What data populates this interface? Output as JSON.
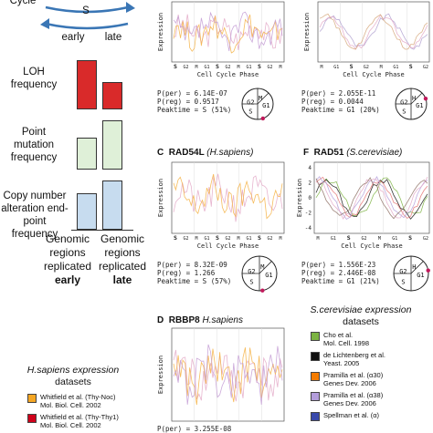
{
  "left": {
    "cycle_labels": {
      "top": "Cycle",
      "s": "S",
      "early": "early",
      "late": "late"
    },
    "metrics": [
      {
        "label": "LOH frequency",
        "early": 1.0,
        "late": 0.55,
        "early_color": "#d92a2a",
        "late_color": "#d92a2a"
      },
      {
        "label": "Point mutation frequency",
        "early": 0.65,
        "late": 1.0,
        "early_color": "#dff0d8",
        "late_color": "#dff0d8"
      },
      {
        "label": "Copy number alteration end-point frequency",
        "early": 0.75,
        "late": 1.0,
        "early_color": "#c7dcef",
        "late_color": "#c7dcef"
      }
    ],
    "x_early_1": "Genomic",
    "x_early_2": "regions",
    "x_early_3": "replicated",
    "x_early_4": "early",
    "x_late_1": "Genomic",
    "x_late_2": "regions",
    "x_late_3": "replicated",
    "x_late_4": "late"
  },
  "legend_hs": {
    "title_1": "H.sapiens expression",
    "title_2": "datasets",
    "items": [
      {
        "text_1": "Whitfield et al. (Thy-Noc)",
        "text_2": "Mol. Biol. Cell. 2002",
        "color": "#f5a623"
      },
      {
        "text_1": "Whitfield et al. (Thy-Thy1)",
        "text_2": "Mol. Biol. Cell. 2002",
        "color": "#d0021b"
      }
    ]
  },
  "legend_sc": {
    "title_1": "S.cerevisiae expression",
    "title_2": "datasets",
    "items": [
      {
        "text_1": "Cho et al.",
        "text_2": "Mol. Cell. 1998",
        "color": "#7cb342"
      },
      {
        "text_1": "de Lichtenberg et al.",
        "text_2": "Yeast. 2005",
        "color": "#111111"
      },
      {
        "text_1": "Pramilla et al. (α30)",
        "text_2": "Genes Dev. 2006",
        "color": "#f57c00"
      },
      {
        "text_1": "Pramilla et al. (α38)",
        "text_2": "Genes Dev. 2006",
        "color": "#b39ddb"
      },
      {
        "text_1": "Spellman et al. (α)",
        "text_2": "",
        "color": "#3949ab"
      }
    ]
  },
  "panels": {
    "top_left": {
      "ylabel": "Expression",
      "xlabel": "Cell Cycle Phase",
      "ticks": [
        "S",
        "G2",
        "M",
        "G1",
        "S",
        "G2",
        "M",
        "G1",
        "S",
        "G2",
        "M"
      ],
      "yticks": [],
      "stats_1": "P(per)   = 6.14E-07",
      "stats_2": "P(reg)   = 0.9517",
      "stats_3": "Peaktime = S (51%)",
      "circle": [
        "M",
        "G1",
        "S",
        "G2"
      ]
    },
    "top_right": {
      "ylabel": "Expression",
      "xlabel": "Cell Cycle Phase",
      "ticks": [
        "M",
        "G1",
        "S",
        "G2",
        "M",
        "G1",
        "S",
        "G2"
      ],
      "stats_1": "P(per)   = 2.055E-11",
      "stats_2": "P(reg)   = 0.0044",
      "stats_3": "Peaktime = G1 (20%)",
      "circle": [
        "H",
        "G1",
        "S",
        "G2"
      ]
    },
    "C": {
      "letter": "C",
      "gene": "RAD54L",
      "species": "(H.sapiens)",
      "ylabel": "Expression",
      "xlabel": "Cell Cycle Phase",
      "ticks": [
        "S",
        "G2",
        "M",
        "G1",
        "S",
        "G2",
        "M",
        "G1",
        "S",
        "G2",
        "M"
      ],
      "stats_1": "P(per)   = 8.32E-09",
      "stats_2": "P(reg)   = 1.266",
      "stats_3": "Peaktime = S (57%)",
      "circle": [
        "M",
        "G1",
        "S",
        "G2"
      ]
    },
    "F": {
      "letter": "F",
      "gene": "RAD51",
      "species": "(S.cerevisiae)",
      "ylabel": "Expression",
      "xlabel": "Cell Cycle Phase",
      "ticks": [
        "M",
        "G1",
        "S",
        "G2",
        "M",
        "G1",
        "S",
        "G2"
      ],
      "yticks": [
        "4",
        "2",
        "0",
        "-2",
        "-4"
      ],
      "stats_1": "P(per)   = 1.556E-23",
      "stats_2": "P(reg)   = 2.446E-08",
      "stats_3": "Peaktime = G1 (21%)",
      "circle": [
        "H",
        "G1",
        "S",
        "G2"
      ]
    },
    "D": {
      "letter": "D",
      "gene": "RBBP8",
      "species": "H.sapiens",
      "ylabel": "Expression",
      "stats_1": "P(per)   = 3.255E-08"
    }
  }
}
